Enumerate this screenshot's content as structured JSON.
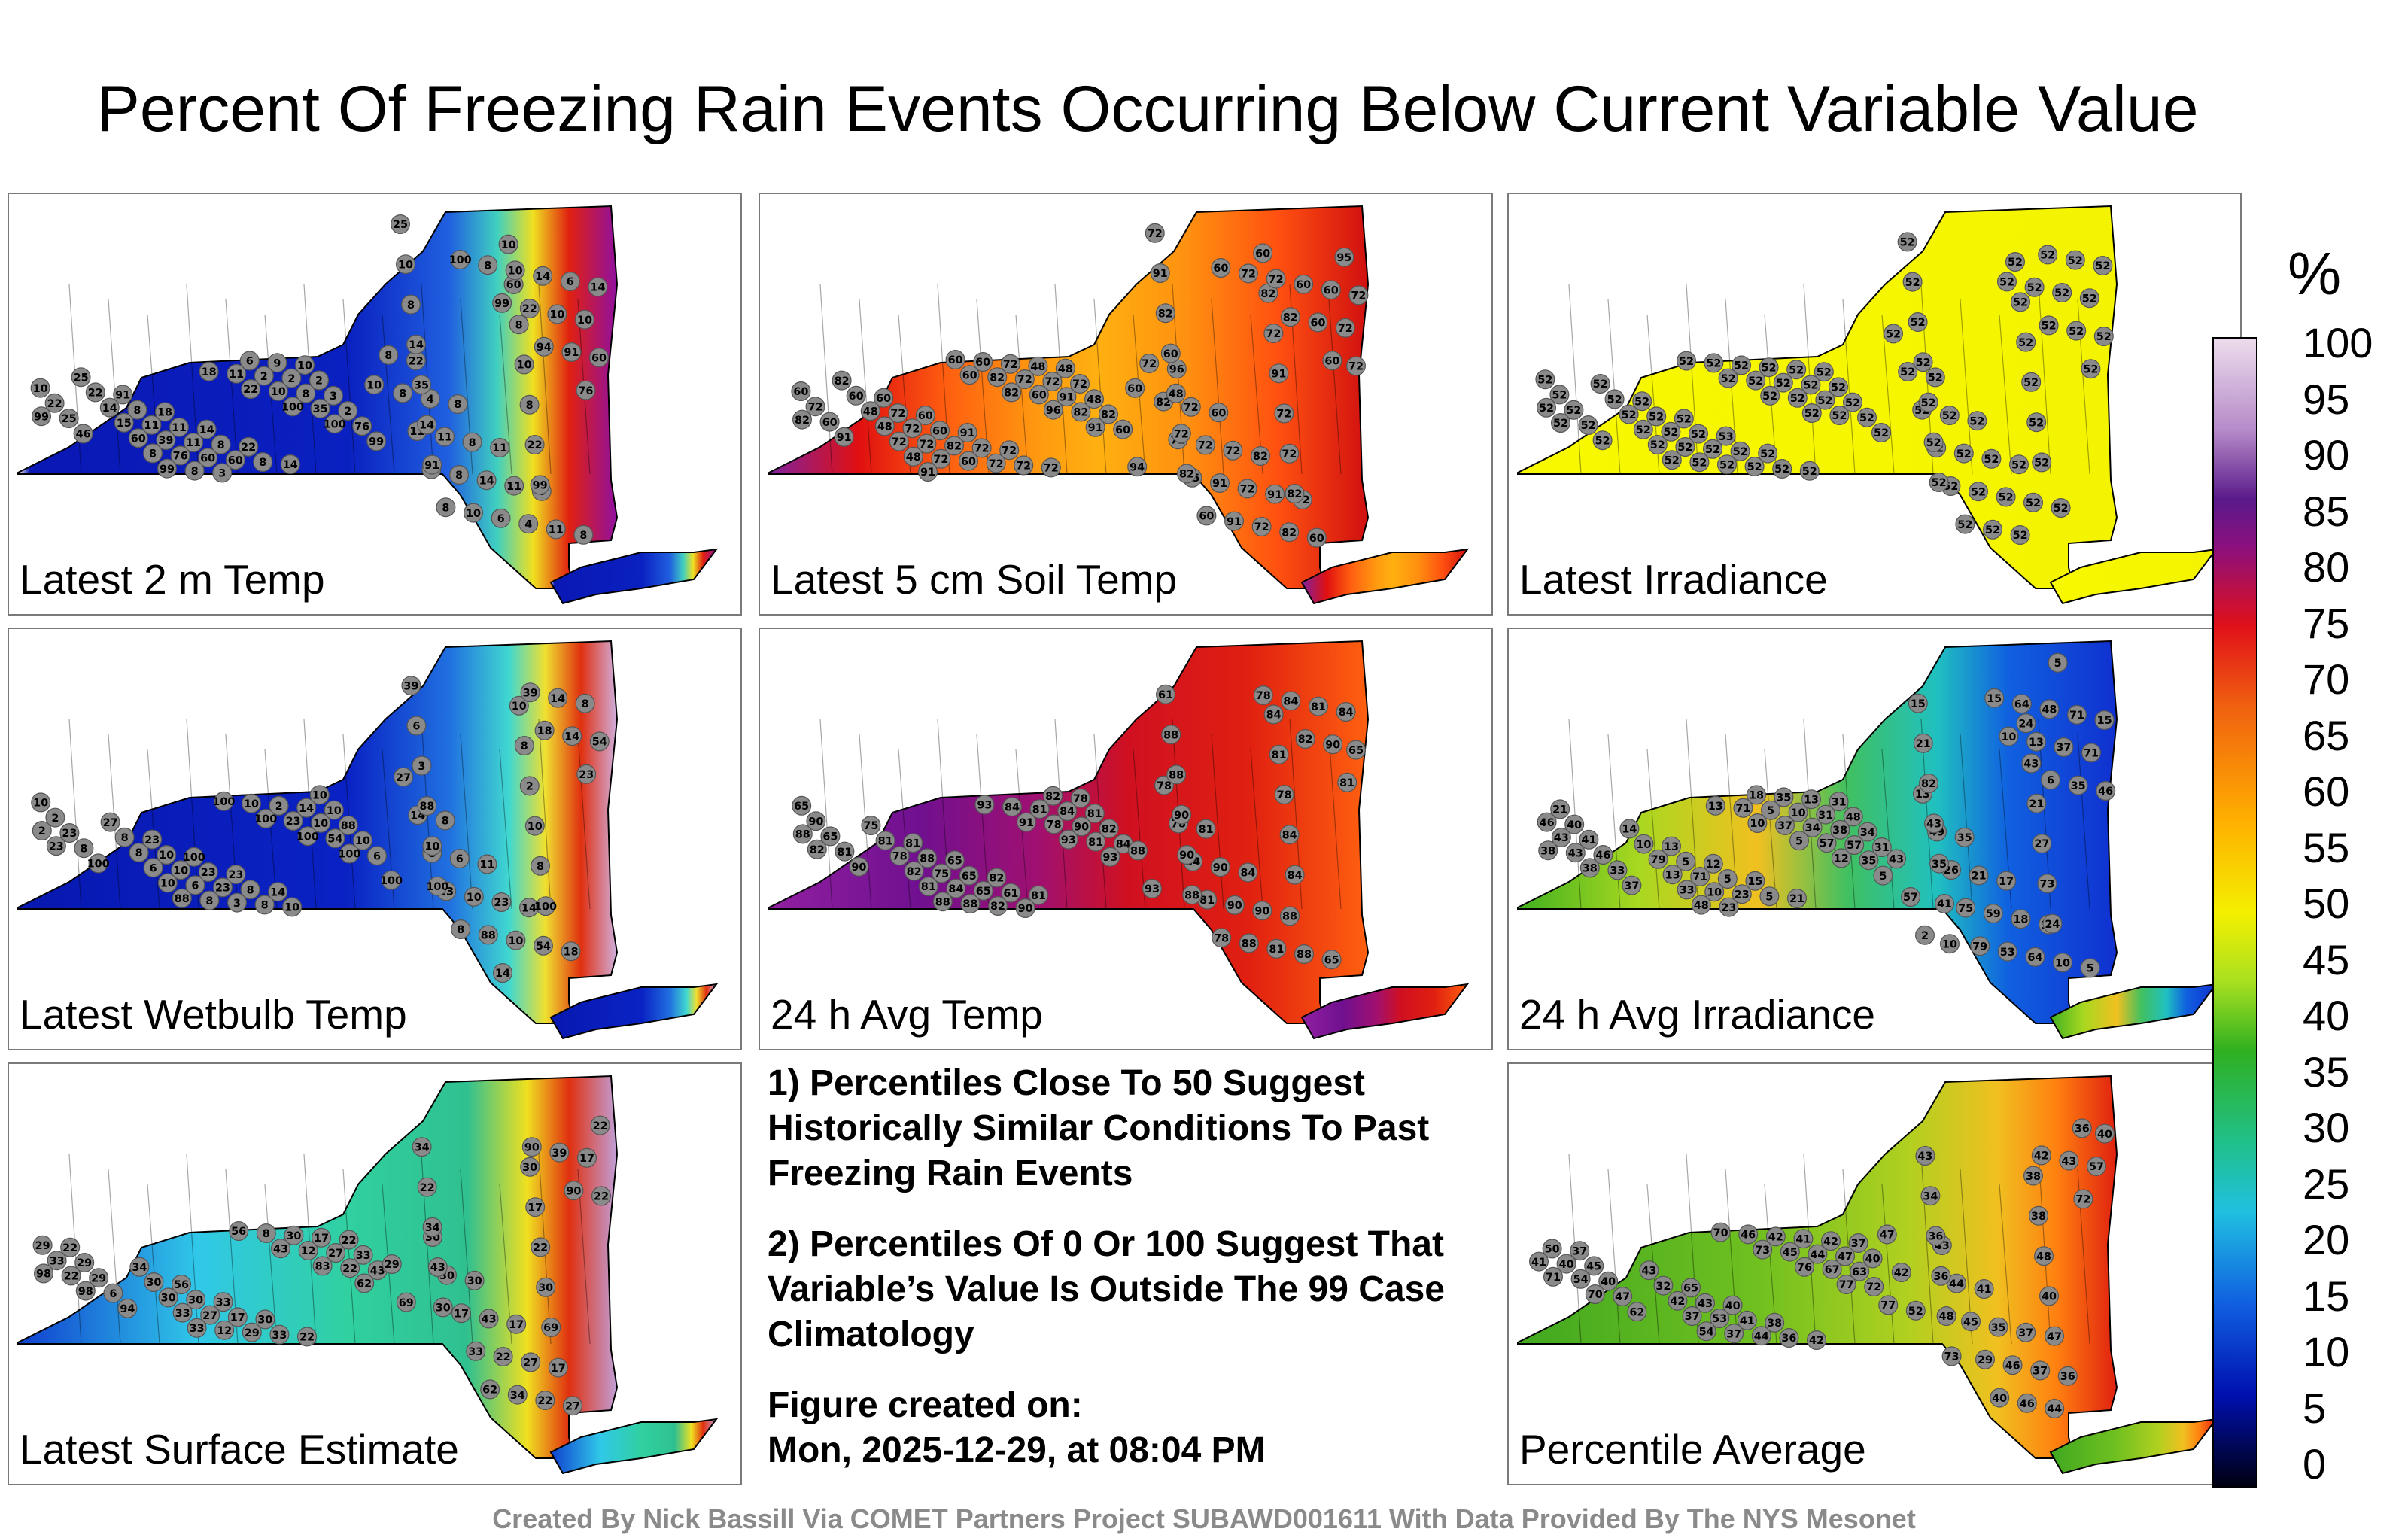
{
  "title": "Percent Of Freezing Rain Events Occurring Below Current Variable Value",
  "colorbar": {
    "unit": "%",
    "ticks": [
      "100",
      "95",
      "90",
      "85",
      "80",
      "75",
      "70",
      "65",
      "60",
      "55",
      "50",
      "45",
      "40",
      "35",
      "30",
      "25",
      "20",
      "15",
      "10",
      "5",
      "0"
    ]
  },
  "panels": [
    {
      "label": "Latest 2 m Temp",
      "scheme": "cold",
      "values": [
        "25",
        "25",
        "91",
        "18",
        "14",
        "22",
        "14",
        "10",
        "10",
        "22",
        "8",
        "11",
        "6",
        "8",
        "10",
        "22",
        "8",
        "11",
        "8",
        "8",
        "10",
        "60",
        "8",
        "4",
        "8",
        "11",
        "11",
        "14",
        "8",
        "14",
        "11",
        "11",
        "60",
        "9",
        "2",
        "8",
        "8",
        "11",
        "14",
        "4",
        "6",
        "10",
        "14",
        "15",
        "39",
        "60",
        "6",
        "2",
        "3",
        "10",
        "11",
        "8",
        "6",
        "14",
        "10",
        "22",
        "35",
        "60",
        "76",
        "3",
        "2",
        "8",
        "2",
        "8",
        "8",
        "10",
        "10",
        "10",
        "60",
        "25",
        "14",
        "8",
        "8",
        "11",
        "10",
        "35",
        "76",
        "22",
        "8",
        "8",
        "22",
        "91",
        "99",
        "46",
        "91",
        "99",
        "18",
        "22",
        "100",
        "100",
        "99",
        "99",
        "100",
        "99",
        "94",
        "76"
      ]
    },
    {
      "label": "Latest 5 cm Soil Temp",
      "scheme": "warm",
      "values": [
        "72",
        "82",
        "60",
        "60",
        "91",
        "72",
        "72",
        "60",
        "60",
        "96",
        "60",
        "82",
        "72",
        "95",
        "91",
        "60",
        "72",
        "60",
        "72",
        "72",
        "48",
        "82",
        "72",
        "72",
        "72",
        "91",
        "60",
        "72",
        "82",
        "48",
        "72",
        "82",
        "72",
        "48",
        "72",
        "72",
        "82",
        "72",
        "72",
        "82",
        "60",
        "60",
        "60",
        "48",
        "72",
        "60",
        "72",
        "72",
        "48",
        "91",
        "72",
        "91",
        "72",
        "60",
        "72",
        "72",
        "48",
        "72",
        "72",
        "60",
        "72",
        "91",
        "82",
        "72",
        "95",
        "91",
        "72",
        "60",
        "72",
        "60",
        "72",
        "48",
        "60",
        "82",
        "60",
        "82",
        "60",
        "72",
        "60",
        "72",
        "82",
        "60",
        "82",
        "91",
        "82",
        "91",
        "60",
        "82",
        "96",
        "91",
        "94",
        "82",
        "60"
      ]
    },
    {
      "label": "Latest Irradiance",
      "scheme": "yellow",
      "values": [
        "52",
        "52",
        "52",
        "52",
        "53",
        "52",
        "52",
        "52",
        "52",
        "52",
        "52",
        "52",
        "52",
        "52",
        "52",
        "52",
        "52",
        "52",
        "52",
        "52",
        "52",
        "52",
        "52",
        "52",
        "52",
        "52",
        "52",
        "52",
        "52",
        "52",
        "52",
        "52",
        "52",
        "52",
        "52",
        "52",
        "52",
        "52",
        "52",
        "52",
        "52",
        "52",
        "52",
        "52",
        "52",
        "52",
        "52",
        "52",
        "52",
        "52",
        "52",
        "52",
        "52",
        "52",
        "52",
        "52",
        "52",
        "52",
        "52",
        "52",
        "52",
        "52",
        "52",
        "52",
        "52",
        "52",
        "52",
        "52",
        "52",
        "52",
        "52",
        "52",
        "52",
        "52",
        "52",
        "52",
        "52",
        "52",
        "52",
        "52",
        "52",
        "52",
        "52",
        "52",
        "52",
        "52",
        "52",
        "52",
        "52"
      ]
    },
    {
      "label": "Latest Wetbulb Temp",
      "scheme": "cold2",
      "values": [
        "39",
        "27",
        "23",
        "100",
        "23",
        "14",
        "10",
        "10",
        "27",
        "8",
        "11",
        "14",
        "18",
        "10",
        "6",
        "8",
        "10",
        "23",
        "8",
        "10",
        "10",
        "8",
        "14",
        "6",
        "23",
        "54",
        "8",
        "2",
        "3",
        "8",
        "10",
        "23",
        "8",
        "14",
        "88",
        "2",
        "8",
        "10",
        "10",
        "14",
        "54",
        "23",
        "88",
        "6",
        "6",
        "3",
        "2",
        "10",
        "10",
        "10",
        "23",
        "88",
        "39",
        "14",
        "2",
        "8",
        "10",
        "10",
        "8",
        "10",
        "23",
        "54",
        "6",
        "8",
        "8",
        "14",
        "18",
        "23",
        "23",
        "100",
        "100",
        "88",
        "100",
        "100",
        "100",
        "100",
        "100",
        "100"
      ]
    },
    {
      "label": "24 h Avg Temp",
      "scheme": "hot",
      "values": [
        "61",
        "75",
        "81",
        "65",
        "82",
        "81",
        "78",
        "84",
        "78",
        "81",
        "84",
        "88",
        "65",
        "65",
        "88",
        "81",
        "88",
        "65",
        "61",
        "82",
        "81",
        "81",
        "78",
        "90",
        "90",
        "88",
        "84",
        "90",
        "88",
        "78",
        "75",
        "65",
        "90",
        "84",
        "82",
        "78",
        "84",
        "90",
        "81",
        "81",
        "65",
        "65",
        "90",
        "82",
        "84",
        "82",
        "81",
        "90",
        "84",
        "84",
        "81",
        "88",
        "84",
        "90",
        "88",
        "81",
        "90",
        "81",
        "88",
        "84",
        "78",
        "81",
        "88",
        "84",
        "78",
        "78",
        "82",
        "81",
        "82",
        "90",
        "88",
        "88",
        "93",
        "91",
        "93",
        "93",
        "93"
      ]
    },
    {
      "label": "24 h Avg Irradiance",
      "scheme": "mixed",
      "values": [
        "15",
        "14",
        "13",
        "12",
        "15",
        "21",
        "31",
        "24",
        "13",
        "35",
        "17",
        "13",
        "5",
        "21",
        "21",
        "10",
        "5",
        "5",
        "5",
        "13",
        "48",
        "43",
        "49",
        "21",
        "18",
        "10",
        "15",
        "40",
        "82",
        "79",
        "71",
        "23",
        "35",
        "31",
        "34",
        "21",
        "26",
        "59",
        "64",
        "71",
        "46",
        "41",
        "43",
        "13",
        "10",
        "18",
        "10",
        "38",
        "31",
        "27",
        "75",
        "53",
        "48",
        "71",
        "43",
        "46",
        "35",
        "33",
        "23",
        "5",
        "34",
        "57",
        "43",
        "73",
        "79",
        "64",
        "37",
        "46",
        "43",
        "33",
        "41",
        "48",
        "71",
        "37",
        "57",
        "35",
        "57",
        "24",
        "15",
        "13",
        "35",
        "38",
        "38",
        "37",
        "10",
        "13",
        "10",
        "5",
        "12",
        "5",
        "2",
        "5",
        "10",
        "6"
      ]
    },
    {
      "label": "Latest Surface Estimate",
      "scheme": "teal",
      "values": [
        "34",
        "34",
        "56",
        "33",
        "30",
        "22",
        "22",
        "30",
        "30",
        "30",
        "17",
        "17",
        "22",
        "22",
        "22",
        "30",
        "30",
        "17",
        "33",
        "17",
        "33",
        "17",
        "30",
        "43",
        "27",
        "27",
        "29",
        "29",
        "34",
        "30",
        "27",
        "29",
        "30",
        "27",
        "43",
        "22",
        "17",
        "22",
        "22",
        "17",
        "33",
        "29",
        "43",
        "33",
        "12",
        "8",
        "12",
        "22",
        "29",
        "30",
        "33",
        "34",
        "39",
        "22",
        "22",
        "6",
        "30",
        "33",
        "56",
        "43",
        "83",
        "62",
        "69",
        "69",
        "62",
        "90",
        "90",
        "98",
        "98",
        "94"
      ]
    },
    {
      "label": "Percentile Average",
      "scheme": "avg",
      "values": [
        "43",
        "43",
        "65",
        "40",
        "38",
        "42",
        "37",
        "38",
        "43",
        "41",
        "37",
        "36",
        "40",
        "37",
        "34",
        "32",
        "43",
        "41",
        "36",
        "42",
        "40",
        "38",
        "44",
        "35",
        "37",
        "36",
        "50",
        "45",
        "36",
        "42",
        "53",
        "44",
        "41",
        "47",
        "47",
        "48",
        "45",
        "46",
        "44",
        "57",
        "40",
        "40",
        "36",
        "37",
        "37",
        "42",
        "44",
        "63",
        "42",
        "40",
        "29",
        "46",
        "43",
        "41",
        "54",
        "47",
        "48",
        "54",
        "46",
        "45",
        "67",
        "72",
        "52",
        "47",
        "40",
        "42",
        "72",
        "71",
        "70",
        "62",
        "73",
        "70",
        "73",
        "76",
        "77",
        "77"
      ]
    }
  ],
  "notes": [
    "1) Percentiles Close To 50 Suggest Historically Similar Conditions To Past Freezing Rain Events",
    "2) Percentiles Of 0 Or 100 Suggest That Variable’s Value Is Outside The 99 Case Climatology"
  ],
  "figure_created": {
    "heading": "Figure created on:",
    "timestamp": "Mon, 2025-12-29, at 08:04 PM"
  },
  "credit": "Created By Nick Bassill Via COMET Partners Project SUBAWD001611 With Data Provided By The NYS Mesonet"
}
